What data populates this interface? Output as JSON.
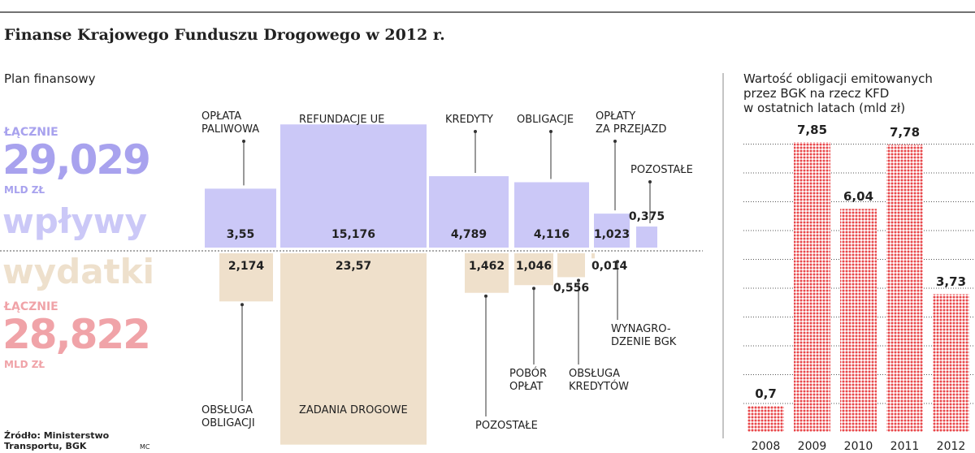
{
  "title": "Finanse Krajowego Funduszu Drogowego w 2012 r.",
  "source": "Źródło: Ministerstwo\nTransportu, BGK",
  "author": "MC",
  "chart_data": [
    {
      "type": "flow",
      "subtitle": "Plan finansowy",
      "series": [
        {
          "name": "wpływy",
          "total_label": "ŁĄCZNIE",
          "total": 29.029,
          "total_value_label": "29,029",
          "unit": "MLD ZŁ",
          "color": "#cbc8f7",
          "text_color": "#a8a2ee",
          "categories": [
            "OPŁATA\nPALIWOWA",
            "REFUNDACJE UE",
            "KREDYTY",
            "OBLIGACJE",
            "OPŁATY\nZA PRZEJAZD",
            "POZOSTAŁE"
          ],
          "values": [
            3.55,
            15.176,
            4.789,
            4.116,
            1.023,
            0.375
          ],
          "value_labels": [
            "3,55",
            "15,176",
            "4,789",
            "4,116",
            "1,023",
            "0,375"
          ]
        },
        {
          "name": "wydatki",
          "total_label": "ŁĄCZNIE",
          "total": 28.822,
          "total_value_label": "28,822",
          "unit": "MLD ZŁ",
          "color": "#efe0cb",
          "text_color": "#f0a3a8",
          "name_color": "#eee0cc",
          "categories": [
            "OBSŁUGA\nOBLIGACJI",
            "ZADANIA DROGOWE",
            "POZOSTAŁE",
            "POBÓR\nOPŁAT",
            "OBSŁUGA\nKREDYTÓW",
            "WYNAGRO-\nDZENIE BGK"
          ],
          "values": [
            2.174,
            23.57,
            1.462,
            1.046,
            0.556,
            0.014
          ],
          "value_labels": [
            "2,174",
            "23,57",
            "1,462",
            "1,046",
            "0,556",
            "0,014"
          ]
        }
      ]
    },
    {
      "type": "bar",
      "title": "Wartość obligacji emitowanych\nprzez BGK na rzecz KFD\nw ostatnich latach (mld zł)",
      "categories": [
        "2008",
        "2009",
        "2010",
        "2011",
        "2012"
      ],
      "values": [
        0.7,
        7.85,
        6.04,
        7.78,
        3.73
      ],
      "value_labels": [
        "0,7",
        "7,85",
        "6,04",
        "7,78",
        "3,73"
      ],
      "color": "#e8474a",
      "ylim": [
        0,
        8.4
      ]
    }
  ]
}
